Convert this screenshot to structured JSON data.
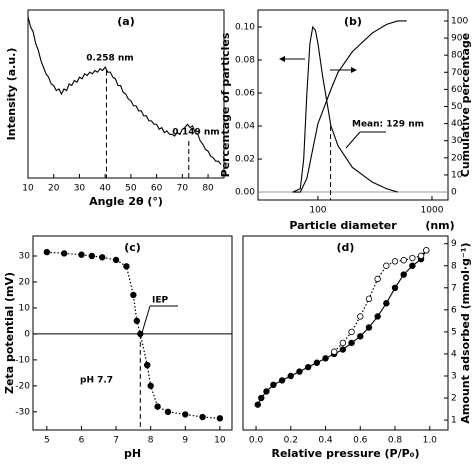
{
  "chart_data": [
    {
      "type": "line",
      "title": "(a)",
      "xlabel": "Angle 2θ (°)",
      "ylabel": "Intensity (a.u.)",
      "xlim": [
        10,
        86.2
      ],
      "xticks": [
        10,
        20,
        30,
        40,
        50,
        60,
        70,
        80
      ],
      "ylim": [
        0,
        100
      ],
      "series": [
        {
          "color": "#000000",
          "x": [
            10,
            11,
            12,
            13,
            14,
            15,
            16,
            17,
            18,
            19,
            20,
            21,
            22,
            23,
            24,
            25,
            26,
            27,
            28,
            29,
            30,
            31,
            32,
            33,
            34,
            35,
            36,
            37,
            38,
            39,
            40,
            41,
            42,
            43,
            44,
            45,
            46,
            47,
            48,
            49,
            50,
            51,
            52,
            53,
            54,
            55,
            56,
            57,
            58,
            59,
            60,
            61,
            62,
            63,
            64,
            65,
            66,
            67,
            68,
            69,
            70,
            71,
            72,
            73,
            74,
            75,
            76,
            77,
            78,
            79,
            80,
            81,
            82,
            83,
            84,
            85
          ],
          "values": [
            96,
            90,
            87,
            80,
            76,
            70,
            66,
            62,
            60,
            56,
            55,
            52,
            53,
            50,
            53,
            52,
            56,
            55,
            58,
            57,
            60,
            59,
            62,
            61,
            63,
            62,
            64,
            63,
            65,
            64,
            66,
            63,
            63,
            60,
            59,
            55,
            55,
            51,
            50,
            47,
            46,
            43,
            43,
            40,
            40,
            37,
            37,
            34,
            34,
            32,
            32,
            29,
            30,
            27,
            28,
            26,
            26,
            25,
            27,
            26,
            29,
            30,
            32,
            30,
            31,
            27,
            26,
            22,
            20,
            17,
            16,
            13,
            12,
            10,
            10,
            8
          ]
        }
      ],
      "vlines": [
        {
          "x": 40.5,
          "y": 64
        },
        {
          "x": 72.5,
          "y": 22
        }
      ],
      "annotations": [
        "0.258 nm",
        "0.149 nm"
      ]
    },
    {
      "type": "line",
      "title": "(b)",
      "xlabel": "Particle diameter",
      "xunit": "(nm)",
      "ylabel": "Percentage of particles",
      "y2label": "Cumulative percentage",
      "xlim": [
        29.8,
        1382
      ],
      "xlog": true,
      "xticks": [
        100,
        1000
      ],
      "ylim": [
        -0.0048,
        0.1103
      ],
      "yticks": [
        {
          "value": 0,
          "label": "0.00"
        },
        0.02,
        0.04,
        0.06,
        0.08,
        {
          "value": 0.1,
          "label": "0.10"
        }
      ],
      "y2lim": [
        -4.65,
        106.4
      ],
      "y2ticks": [
        0,
        10,
        20,
        30,
        40,
        50,
        60,
        70,
        80,
        90,
        100
      ],
      "hline": 0,
      "hline_axis": "y2",
      "series": [
        {
          "color": "#000000",
          "x": [
            60,
            70,
            75,
            80,
            85,
            90,
            95,
            100,
            110,
            130,
            150,
            200,
            300,
            400,
            500
          ],
          "values": [
            0,
            0.002,
            0.02,
            0.06,
            0.09,
            0.1,
            0.098,
            0.09,
            0.07,
            0.04,
            0.028,
            0.015,
            0.006,
            0.002,
            0
          ]
        },
        {
          "color": "#000000",
          "axis": "y2",
          "x": [
            60,
            70,
            80,
            90,
            100,
            130,
            150,
            200,
            300,
            400,
            500,
            600
          ],
          "values": [
            0,
            0,
            8,
            25,
            40,
            60,
            70,
            82,
            93,
            98,
            100,
            100
          ]
        }
      ],
      "vlines": [
        {
          "x": 129,
          "y": 0.04
        }
      ],
      "annotations": [
        "Mean: 129 nm"
      ]
    },
    {
      "type": "line",
      "title": "(c)",
      "xlabel": "pH",
      "ylabel": "Zeta potential (mV)",
      "xlim": [
        4.6,
        10.35
      ],
      "xticks": [
        5,
        6,
        7,
        8,
        9,
        10
      ],
      "ylim": [
        -37,
        37.7
      ],
      "yticks": [
        30,
        20,
        10,
        0,
        -10,
        -20,
        -30
      ],
      "hline": 0,
      "series": [
        {
          "color": "#000000",
          "marker": "filled",
          "dash": true,
          "x": [
            5,
            5.5,
            6,
            6.3,
            6.6,
            7,
            7.3,
            7.5,
            7.6,
            7.7,
            7.9,
            8,
            8.2,
            8.5,
            9,
            9.5,
            10
          ],
          "values": [
            31.5,
            31,
            30.5,
            30,
            29.5,
            28.5,
            26,
            15,
            5,
            0,
            -12,
            -20,
            -28,
            -30,
            -31,
            -32,
            -32.5
          ]
        }
      ],
      "vlines": [
        {
          "x": 7.7,
          "y": 0
        }
      ],
      "annotations": [
        "IEP",
        "pH 7.7"
      ]
    },
    {
      "type": "line",
      "title": "(d)",
      "xlabel": "Relative pressure (P/P₀)",
      "y2label": "Amount adsorbed (mmol·g⁻¹)",
      "xlim": [
        -0.075,
        1.105
      ],
      "xticks": [
        {
          "value": 0,
          "label": "0.0"
        },
        0.2,
        0.4,
        0.6,
        0.8,
        {
          "value": 1,
          "label": "1.0"
        }
      ],
      "y2lim": [
        0.55,
        9.35
      ],
      "y2ticks": [
        1,
        2,
        3,
        4,
        5,
        6,
        7,
        8,
        9
      ],
      "series": [
        {
          "color": "#000000",
          "axis": "y2",
          "marker": "filled",
          "x": [
            0.01,
            0.03,
            0.06,
            0.1,
            0.15,
            0.2,
            0.25,
            0.3,
            0.35,
            0.4,
            0.45,
            0.5,
            0.55,
            0.6,
            0.65,
            0.7,
            0.75,
            0.8,
            0.85,
            0.9,
            0.95,
            0.98
          ],
          "values": [
            1.7,
            2.0,
            2.3,
            2.6,
            2.8,
            3.0,
            3.2,
            3.4,
            3.6,
            3.8,
            4.0,
            4.2,
            4.5,
            4.8,
            5.2,
            5.7,
            6.3,
            7.0,
            7.6,
            8.0,
            8.3,
            8.7
          ]
        },
        {
          "color": "#000000",
          "axis": "y2",
          "marker": "open",
          "dash": true,
          "x": [
            0.98,
            0.95,
            0.9,
            0.85,
            0.8,
            0.75,
            0.7,
            0.65,
            0.6,
            0.55,
            0.5,
            0.45
          ],
          "values": [
            8.7,
            8.45,
            8.35,
            8.25,
            8.2,
            8.0,
            7.4,
            6.5,
            5.7,
            5.0,
            4.5,
            4.1
          ]
        }
      ]
    }
  ]
}
